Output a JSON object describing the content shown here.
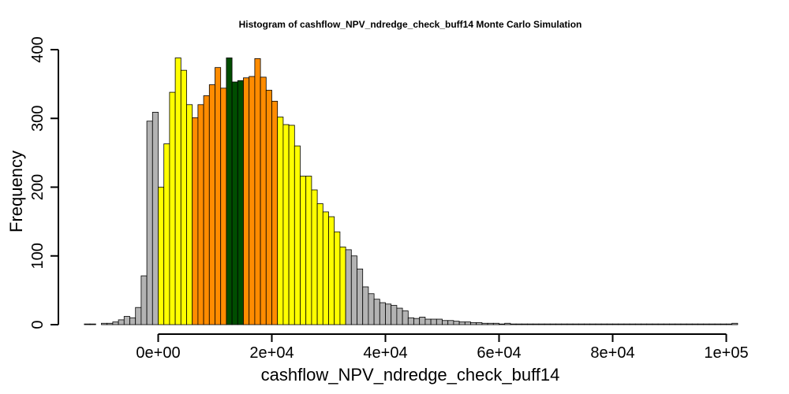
{
  "chart_data": {
    "type": "bar",
    "title": "Histogram of  cashflow_NPV_ndredge_check_buff14  Monte Carlo Simulation",
    "xlabel": "cashflow_NPV_ndredge_check_buff14",
    "ylabel": "Frequency",
    "bin_width": 1000,
    "first_bin_start": -13000,
    "xlim": [
      -13000,
      102000
    ],
    "ylim": [
      0,
      400
    ],
    "x_ticks": [
      0,
      20000,
      40000,
      60000,
      80000,
      100000
    ],
    "x_tick_labels": [
      "0e+00",
      "2e+04",
      "4e+04",
      "6e+04",
      "8e+04",
      "1e+05"
    ],
    "y_ticks": [
      0,
      100,
      200,
      300,
      400
    ],
    "y_tick_labels": [
      "0",
      "100",
      "200",
      "300",
      "400"
    ],
    "colors": {
      "tail": "#b3b3b3",
      "outer": "#ffff00",
      "middle": "#ff8c00",
      "center": "#004d00",
      "axis": "#000000",
      "background": "#ffffff"
    },
    "counts": [
      1,
      1,
      0,
      2,
      2,
      4,
      7,
      12,
      10,
      25,
      71,
      296,
      309,
      200,
      263,
      338,
      388,
      370,
      320,
      301,
      320,
      333,
      349,
      374,
      344,
      388,
      353,
      355,
      359,
      361,
      387,
      360,
      341,
      325,
      302,
      291,
      290,
      260,
      216,
      216,
      196,
      176,
      164,
      157,
      135,
      113,
      109,
      100,
      81,
      55,
      45,
      37,
      32,
      30,
      28,
      24,
      20,
      10,
      9,
      11,
      8,
      8,
      8,
      6,
      6,
      5,
      4,
      4,
      3,
      3,
      2,
      2,
      2,
      1,
      2,
      1,
      1,
      1,
      1,
      1,
      1,
      1,
      1,
      1,
      1,
      1,
      1,
      1,
      1,
      1,
      1,
      1,
      1,
      1,
      1,
      1,
      1,
      1,
      1,
      1,
      1,
      1,
      1,
      1,
      1,
      1,
      1,
      1,
      1,
      1,
      1,
      1,
      1,
      1,
      2
    ],
    "color_bands": [
      {
        "from": -13000,
        "to": 0,
        "color": "tail"
      },
      {
        "from": 0,
        "to": 6000,
        "color": "outer"
      },
      {
        "from": 6000,
        "to": 12000,
        "color": "middle"
      },
      {
        "from": 12000,
        "to": 15000,
        "color": "center"
      },
      {
        "from": 15000,
        "to": 21000,
        "color": "middle"
      },
      {
        "from": 21000,
        "to": 33000,
        "color": "outer"
      },
      {
        "from": 33000,
        "to": 102000,
        "color": "tail"
      }
    ]
  }
}
